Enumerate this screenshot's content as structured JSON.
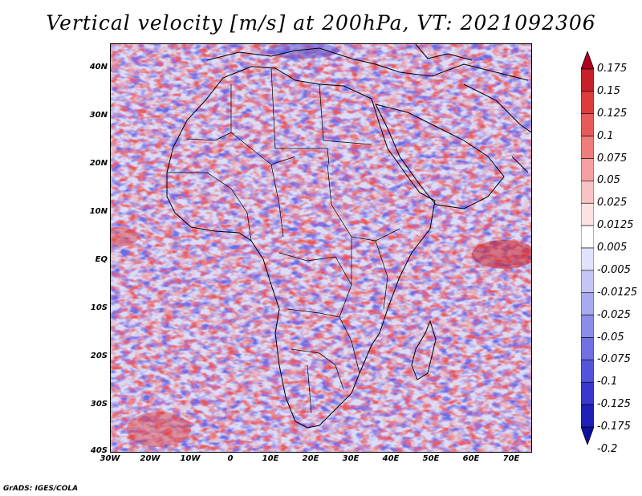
{
  "title": "Vertical velocity [m/s] at 200hPa, VT: 2021092306",
  "footer": "GrADS: IGES/COLA",
  "map": {
    "lat_labels": [
      "40N",
      "30N",
      "20N",
      "10N",
      "EQ",
      "10S",
      "20S",
      "30S",
      "40S"
    ],
    "lon_labels": [
      "30W",
      "20W",
      "10W",
      "0",
      "10E",
      "20E",
      "30E",
      "40E",
      "50E",
      "60E",
      "70E"
    ]
  },
  "colorbar": {
    "labels": [
      "0.175",
      "0.15",
      "0.125",
      "0.1",
      "0.075",
      "0.05",
      "0.025",
      "0.0125",
      "0.005",
      "-0.005",
      "-0.0125",
      "-0.025",
      "-0.05",
      "-0.075",
      "-0.1",
      "-0.125",
      "-0.175",
      "-0.2"
    ],
    "colors": [
      "#b00020",
      "#c8202a",
      "#dc3c3c",
      "#e85a5a",
      "#f07c7c",
      "#f5a0a0",
      "#f9c2c2",
      "#fde2e2",
      "#ffffff",
      "#e2e2fc",
      "#c6c6f6",
      "#aaaaf0",
      "#8c8cea",
      "#7070e2",
      "#5454da",
      "#3838cc",
      "#2020b8",
      "#1010a0"
    ]
  }
}
